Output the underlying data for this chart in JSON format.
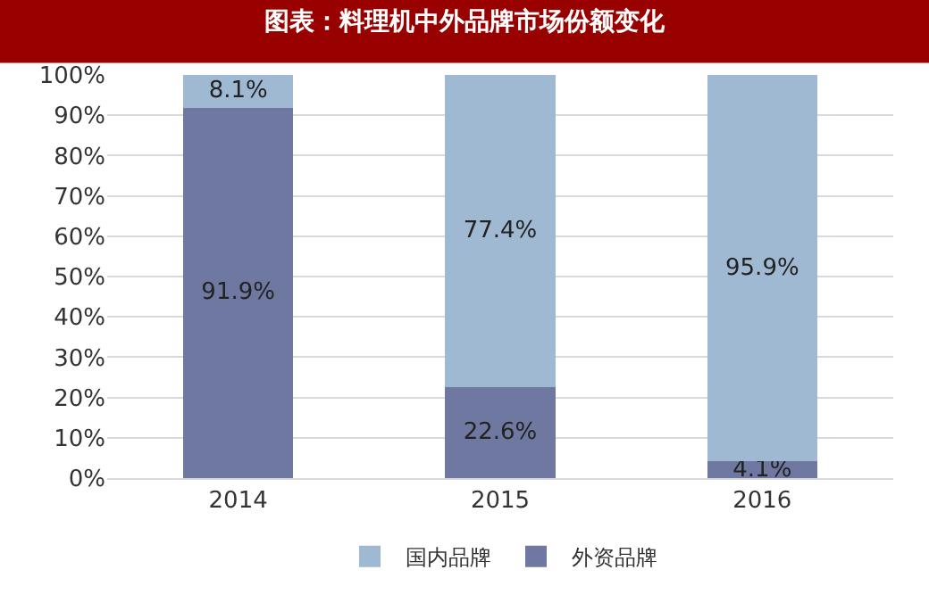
{
  "chart_data": {
    "type": "bar",
    "title": "图表：料理机中外品牌市场份额变化",
    "stacked": true,
    "categories": [
      "2014",
      "2015",
      "2016"
    ],
    "series": [
      {
        "name": "外资品牌",
        "color": "#6e78a0",
        "values": [
          91.9,
          22.6,
          4.1
        ],
        "value_labels": [
          "91.9%",
          "22.6%",
          "4.1%"
        ]
      },
      {
        "name": "国内品牌",
        "color": "#a0b9d2",
        "values": [
          8.1,
          77.4,
          95.9
        ],
        "value_labels": [
          "8.1%",
          "77.4%",
          "95.9%"
        ]
      }
    ],
    "ylim": [
      0,
      100
    ],
    "yticks": [
      {
        "value": 0,
        "label": "0%"
      },
      {
        "value": 10,
        "label": "10%"
      },
      {
        "value": 20,
        "label": "20%"
      },
      {
        "value": 30,
        "label": "30%"
      },
      {
        "value": 40,
        "label": "40%"
      },
      {
        "value": 50,
        "label": "50%"
      },
      {
        "value": 60,
        "label": "60%"
      },
      {
        "value": 70,
        "label": "70%"
      },
      {
        "value": 80,
        "label": "80%"
      },
      {
        "value": 90,
        "label": "90%"
      },
      {
        "value": 100,
        "label": "100%"
      }
    ],
    "grid": "y",
    "legend": "bottom"
  }
}
